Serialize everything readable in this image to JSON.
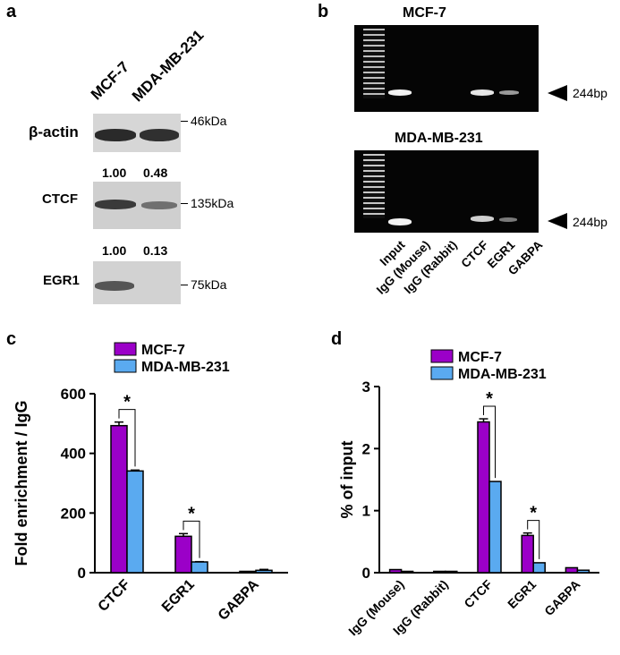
{
  "panel_a": {
    "letter": "a",
    "cell_lines": [
      "MCF-7",
      "MDA-MB-231"
    ],
    "blots": [
      {
        "name": "β-actin",
        "marker": "46kDa",
        "ratios": []
      },
      {
        "name": "CTCF",
        "marker": "135kDa",
        "ratios": [
          "1.00",
          "0.48"
        ]
      },
      {
        "name": "EGR1",
        "marker": "75kDa",
        "ratios": [
          "1.00",
          "0.13"
        ]
      }
    ]
  },
  "panel_b": {
    "letter": "b",
    "gels": [
      {
        "title": "MCF-7",
        "size": "244bp"
      },
      {
        "title": "MDA-MB-231",
        "size": "244bp"
      }
    ],
    "lanes": [
      "Input",
      "IgG (Mouse)",
      "IgG (Rabbit)",
      "CTCF",
      "EGR1",
      "GABPA"
    ]
  },
  "panel_c": {
    "letter": "c"
  },
  "panel_d": {
    "letter": "d"
  },
  "colors": {
    "mcf7": "#9b00c8",
    "mda": "#5aaaf0"
  },
  "chart_data": [
    {
      "type": "bar",
      "title": "",
      "xlabel": "",
      "ylabel": "Fold enrichment / IgG",
      "categories": [
        "CTCF",
        "EGR1",
        "GABPA"
      ],
      "ylim": [
        0,
        600
      ],
      "yticks": [
        0,
        200,
        400,
        600
      ],
      "series": [
        {
          "name": "MCF-7",
          "values": [
            493,
            122,
            1
          ],
          "errors": [
            12,
            9,
            0
          ]
        },
        {
          "name": "MDA-MB-231",
          "values": [
            341,
            36,
            8
          ],
          "errors": [
            3,
            1,
            3
          ]
        }
      ],
      "significance": [
        {
          "category": "CTCF",
          "label": "*"
        },
        {
          "category": "EGR1",
          "label": "*"
        }
      ],
      "legend": "top-right"
    },
    {
      "type": "bar",
      "title": "",
      "xlabel": "",
      "ylabel": "% of input",
      "categories": [
        "IgG (Mouse)",
        "IgG (Rabbit)",
        "CTCF",
        "EGR1",
        "GABPA"
      ],
      "ylim": [
        0,
        3
      ],
      "yticks": [
        0,
        1,
        2,
        3
      ],
      "series": [
        {
          "name": "MCF-7",
          "values": [
            0.05,
            0.01,
            2.43,
            0.6,
            0.08
          ],
          "errors": [
            0,
            0,
            0.05,
            0.04,
            0
          ]
        },
        {
          "name": "MDA-MB-231",
          "values": [
            0.01,
            0.01,
            1.47,
            0.16,
            0.04
          ],
          "errors": [
            0,
            0,
            0,
            0,
            0
          ]
        }
      ],
      "significance": [
        {
          "category": "CTCF",
          "label": "*"
        },
        {
          "category": "EGR1",
          "label": "*"
        }
      ],
      "legend": "top-right"
    }
  ]
}
